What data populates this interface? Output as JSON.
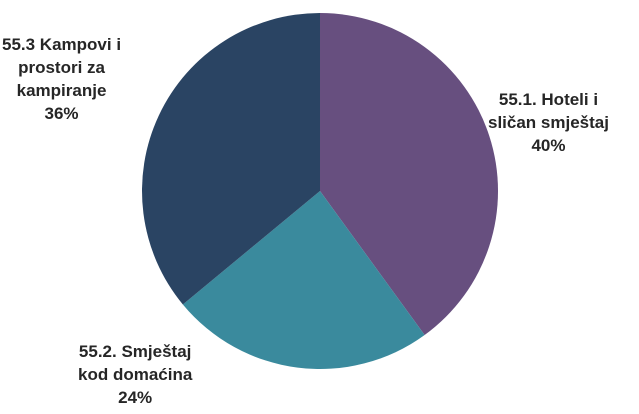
{
  "chart_data": {
    "type": "pie",
    "title": "",
    "slices": [
      {
        "name_lines": [
          "55.1. Hoteli i",
          "sličan smještaj"
        ],
        "value": 40,
        "value_label": "40%",
        "color": "#674f7f"
      },
      {
        "name_lines": [
          "55.2. Smještaj",
          "kod domaćina"
        ],
        "value": 24,
        "value_label": "24%",
        "color": "#3a8a9d"
      },
      {
        "name_lines": [
          "55.3 Kampovi i",
          "prostori za",
          "kampiranje"
        ],
        "value": 36,
        "value_label": "36%",
        "color": "#2a4463"
      }
    ],
    "start": "12 o'clock",
    "direction": "clockwise",
    "legend": "none"
  }
}
